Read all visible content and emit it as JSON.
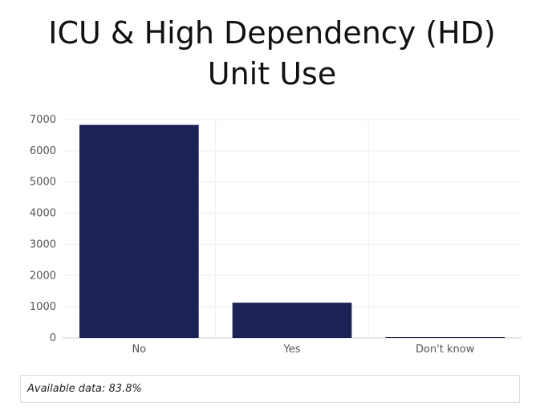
{
  "chart_data": {
    "type": "bar",
    "title_lines": [
      "ICU & High Dependency (HD)",
      "Unit Use"
    ],
    "categories": [
      "No",
      "Yes",
      "Don't know"
    ],
    "values": [
      6830,
      1130,
      10
    ],
    "ylim": [
      0,
      7000
    ],
    "yticks": [
      0,
      1000,
      2000,
      3000,
      4000,
      5000,
      6000,
      7000
    ],
    "ytick_labels": [
      "0",
      "1000",
      "2000",
      "3000",
      "4000",
      "5000",
      "6000",
      "7000"
    ],
    "xlabel": "",
    "ylabel": "",
    "grid": true,
    "bar_color": "#1c2254"
  },
  "footer": {
    "note": "Available data: 83.8%"
  }
}
